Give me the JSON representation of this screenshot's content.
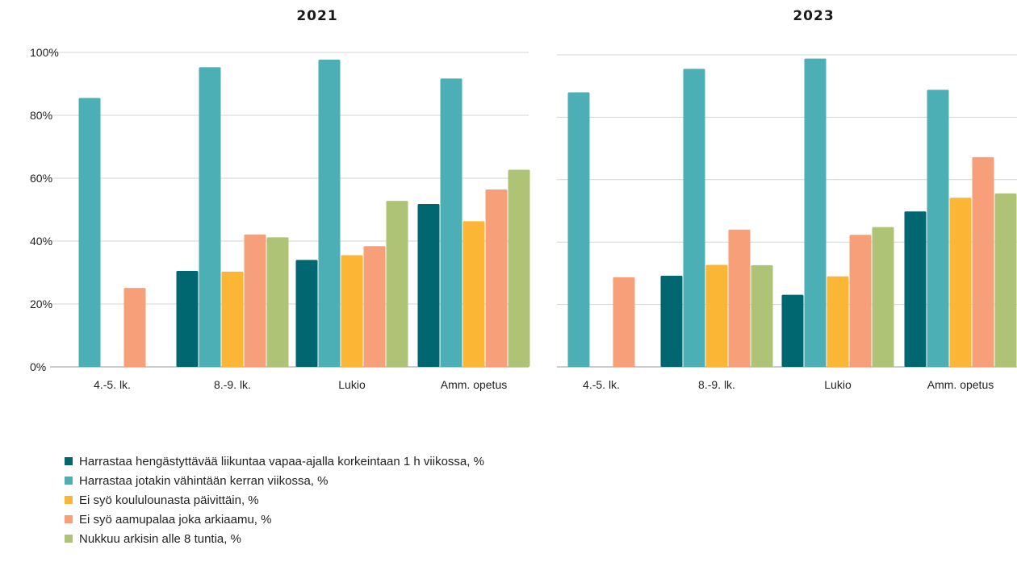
{
  "chart_data": [
    {
      "type": "bar",
      "title": "2021",
      "categories": [
        "4.-5. lk.",
        "8.-9. lk.",
        "Lukio",
        "Amm. opetus"
      ],
      "ylim": [
        0,
        100
      ],
      "yticks": [
        "0%",
        "20%",
        "40%",
        "60%",
        "80%",
        "100%"
      ],
      "grid": true,
      "series": [
        {
          "name": "Harrastaa hengästyttävää liikuntaa vapaa-ajalla korkeintaan 1 h viikossa, %",
          "values": [
            null,
            30.5,
            34,
            51.8
          ]
        },
        {
          "name": "Harrastaa jotakin vähintään kerran viikossa, %",
          "values": [
            85.5,
            95.3,
            97.7,
            91.7
          ]
        },
        {
          "name": "Ei syö koululounasta päivittäin, %",
          "values": [
            null,
            30.3,
            35.5,
            46.3
          ]
        },
        {
          "name": "Ei syö aamupalaa joka arkiaamu, %",
          "values": [
            25.1,
            42.1,
            38.4,
            56.4
          ]
        },
        {
          "name": "Nukkuu arkisin alle 8 tuntia, %",
          "values": [
            null,
            41.2,
            52.8,
            62.7
          ]
        }
      ]
    },
    {
      "type": "bar",
      "title": "2023",
      "categories": [
        "4.-5. lk.",
        "8.-9. lk.",
        "Lukio",
        "Amm. opetus"
      ],
      "ylim": [
        0,
        100
      ],
      "grid": true,
      "series": [
        {
          "name": "Harrastaa hengästyttävää liikuntaa vapaa-ajalla korkeintaan 1 h viikossa, %",
          "values": [
            null,
            29.2,
            23.1,
            49.8
          ]
        },
        {
          "name": "Harrastaa jotakin vähintään kerran viikossa, %",
          "values": [
            88.0,
            95.5,
            98.8,
            88.8
          ]
        },
        {
          "name": "Ei syö koululounasta päivittäin, %",
          "values": [
            null,
            32.7,
            29.0,
            54.2
          ]
        },
        {
          "name": "Ei syö aamupalaa joka arkiaamu, %",
          "values": [
            28.7,
            44.0,
            42.3,
            67.2
          ]
        },
        {
          "name": "Nukkuu arkisin alle 8 tuntia, %",
          "values": [
            null,
            32.6,
            44.8,
            55.6
          ]
        }
      ]
    }
  ],
  "colors": [
    "#006670",
    "#4cafb5",
    "#fbb636",
    "#f69f79",
    "#aec376"
  ],
  "legend": [
    "Harrastaa hengästyttävää liikuntaa vapaa-ajalla korkeintaan 1 h viikossa, %",
    "Harrastaa jotakin vähintään kerran viikossa, %",
    "Ei syö koululounasta päivittäin, %",
    "Ei syö aamupalaa joka arkiaamu, %",
    "Nukkuu arkisin alle 8 tuntia, %"
  ]
}
